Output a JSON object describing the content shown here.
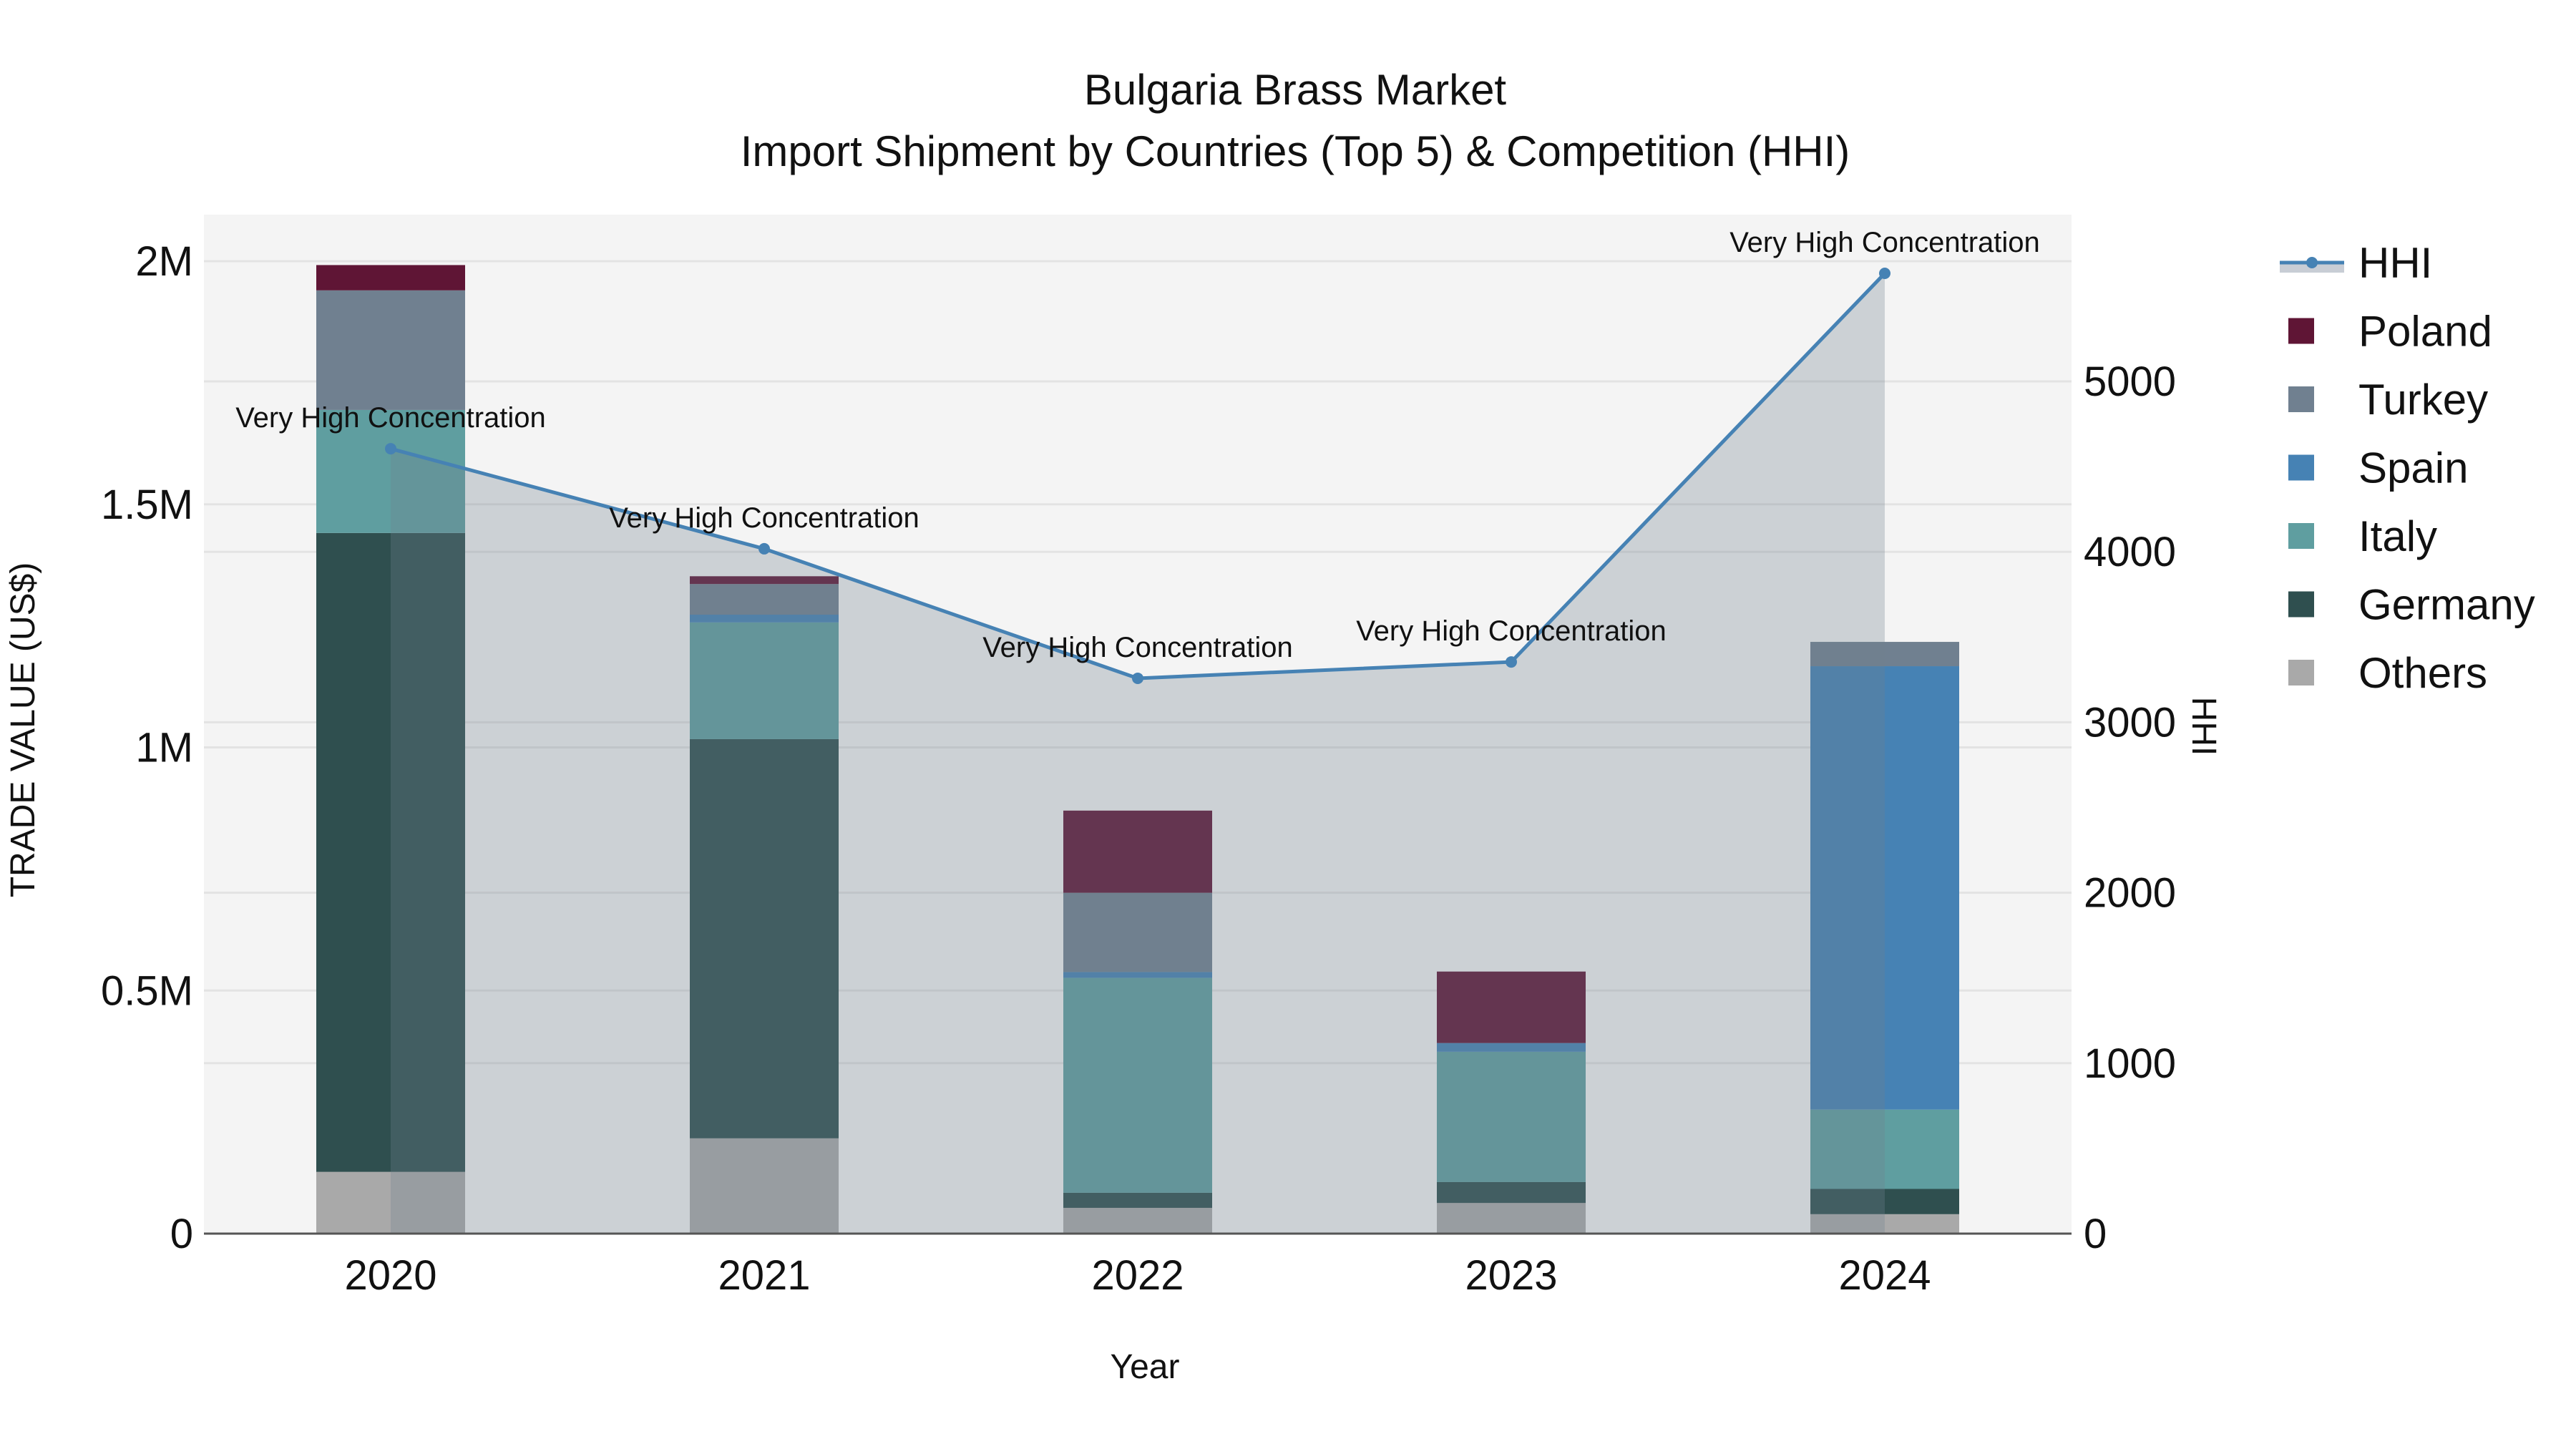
{
  "title": {
    "line1": "Bulgaria Brass Market",
    "line2": "Import Shipment by Countries (Top 5) & Competition (HHI)"
  },
  "axes": {
    "x_title": "Year",
    "y_left_title": "TRADE VALUE (US$)",
    "y_right_title": "HHI",
    "y_left_ticks": [
      {
        "value": 0,
        "label": "0"
      },
      {
        "value": 0.5,
        "label": "0.5M"
      },
      {
        "value": 1.0,
        "label": "1M"
      },
      {
        "value": 1.5,
        "label": "1.5M"
      },
      {
        "value": 2.0,
        "label": "2M"
      }
    ],
    "y_right_ticks": [
      {
        "value": 0,
        "label": "0"
      },
      {
        "value": 1000,
        "label": "1000"
      },
      {
        "value": 2000,
        "label": "2000"
      },
      {
        "value": 3000,
        "label": "3000"
      },
      {
        "value": 4000,
        "label": "4000"
      },
      {
        "value": 5000,
        "label": "5000"
      }
    ]
  },
  "legend": {
    "items": [
      {
        "key": "hhi",
        "label": "HHI",
        "type": "line",
        "color": "#4682b4",
        "fill": "#c8cdd5"
      },
      {
        "key": "poland",
        "label": "Poland",
        "type": "bar",
        "color": "#5f1535"
      },
      {
        "key": "turkey",
        "label": "Turkey",
        "type": "bar",
        "color": "#708090"
      },
      {
        "key": "spain",
        "label": "Spain",
        "type": "bar",
        "color": "#4682b4"
      },
      {
        "key": "italy",
        "label": "Italy",
        "type": "bar",
        "color": "#5f9ea0"
      },
      {
        "key": "germany",
        "label": "Germany",
        "type": "bar",
        "color": "#2f4f4f"
      },
      {
        "key": "others",
        "label": "Others",
        "type": "bar",
        "color": "#a9a9a9"
      }
    ]
  },
  "colors": {
    "plot_bg": "#f4f4f4",
    "grid": "#e3e3e3",
    "axis_line": "#555555",
    "hhi_line": "#4682b4",
    "hhi_fill": "rgba(112,128,144,0.30)"
  },
  "chart_data": {
    "type": "bar",
    "stacked": true,
    "title": "Bulgaria Brass Market — Import Shipment by Countries (Top 5) & Competition (HHI)",
    "xlabel": "Year",
    "ylabel": "TRADE VALUE (US$)",
    "y2label": "HHI",
    "categories": [
      "2020",
      "2021",
      "2022",
      "2023",
      "2024"
    ],
    "ylim": [
      0,
      2.1
    ],
    "y_unit": "M US$",
    "y2lim": [
      0,
      5980
    ],
    "grid": true,
    "legend_position": "right",
    "series": [
      {
        "name": "Others",
        "color": "#a9a9a9",
        "values": [
          0.127,
          0.196,
          0.053,
          0.063,
          0.04
        ]
      },
      {
        "name": "Germany",
        "color": "#2f4f4f",
        "values": [
          1.314,
          0.821,
          0.031,
          0.043,
          0.052
        ]
      },
      {
        "name": "Italy",
        "color": "#5f9ea0",
        "values": [
          0.253,
          0.24,
          0.442,
          0.268,
          0.163
        ]
      },
      {
        "name": "Spain",
        "color": "#4682b4",
        "values": [
          0.0,
          0.016,
          0.012,
          0.018,
          0.912
        ]
      },
      {
        "name": "Turkey",
        "color": "#708090",
        "values": [
          0.246,
          0.063,
          0.163,
          0.0,
          0.05
        ]
      },
      {
        "name": "Poland",
        "color": "#5f1535",
        "values": [
          0.052,
          0.016,
          0.169,
          0.147,
          0.0
        ]
      }
    ],
    "totals": [
      1.991,
      1.352,
      0.87,
      0.539,
      1.217
    ],
    "hhi": {
      "name": "HHI",
      "type": "line+area",
      "axis": "right",
      "values": [
        4605,
        4018,
        3258,
        3354,
        5634
      ],
      "annotations": [
        "Very High Concentration",
        "Very High Concentration",
        "Very High Concentration",
        "Very High Concentration",
        "Very High Concentration"
      ]
    }
  }
}
